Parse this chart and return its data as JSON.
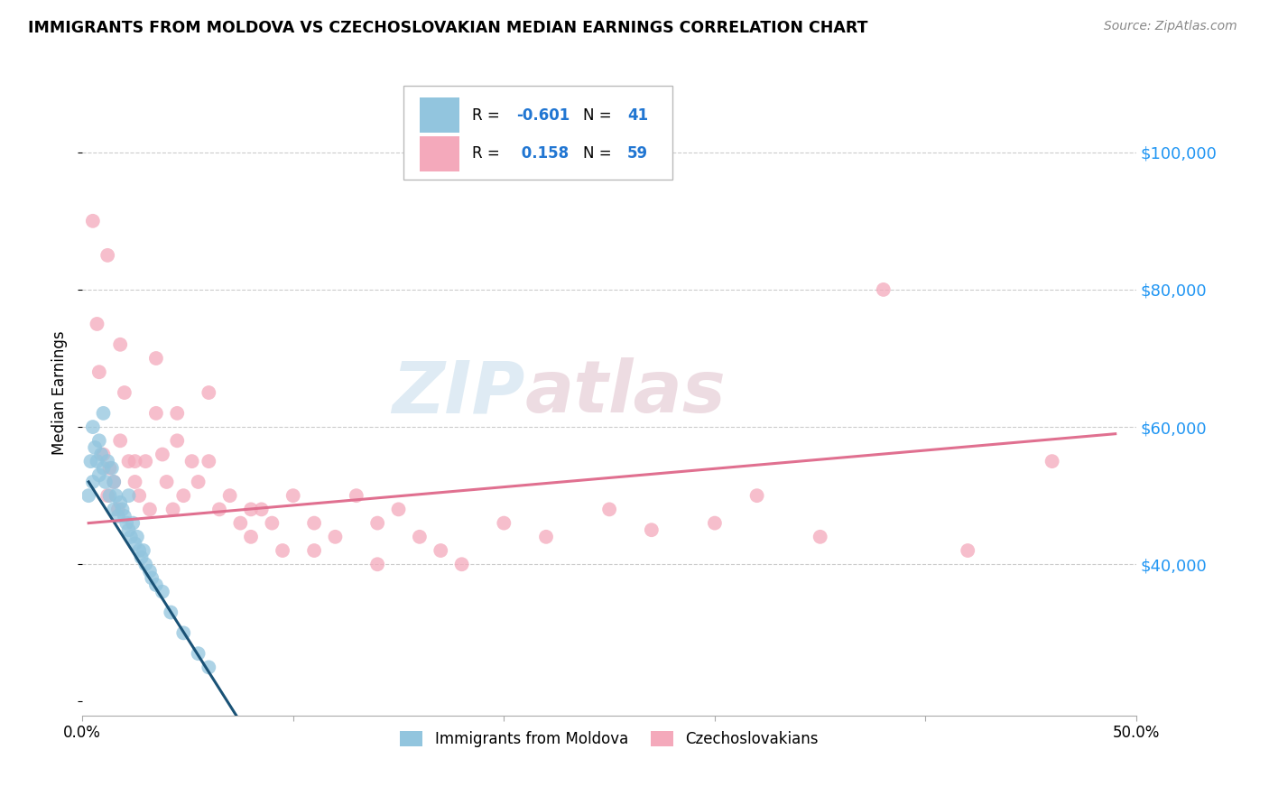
{
  "title": "IMMIGRANTS FROM MOLDOVA VS CZECHOSLOVAKIAN MEDIAN EARNINGS CORRELATION CHART",
  "source": "Source: ZipAtlas.com",
  "ylabel": "Median Earnings",
  "watermark_zip": "ZIP",
  "watermark_atlas": "atlas",
  "legend1_label": "Immigrants from Moldova",
  "legend2_label": "Czechoslovakians",
  "r1": -0.601,
  "n1": 41,
  "r2": 0.158,
  "n2": 59,
  "color_blue": "#92c5de",
  "color_pink": "#f4a9bb",
  "line_blue": "#1a5276",
  "line_pink": "#e07090",
  "yticks": [
    40000,
    60000,
    80000,
    100000
  ],
  "ytick_labels": [
    "$40,000",
    "$60,000",
    "$80,000",
    "$100,000"
  ],
  "xlim": [
    0.0,
    0.5
  ],
  "ylim": [
    18000,
    112000
  ],
  "blue_scatter_x": [
    0.003,
    0.004,
    0.005,
    0.005,
    0.006,
    0.007,
    0.008,
    0.008,
    0.009,
    0.01,
    0.01,
    0.011,
    0.012,
    0.013,
    0.014,
    0.015,
    0.015,
    0.016,
    0.017,
    0.018,
    0.019,
    0.02,
    0.021,
    0.022,
    0.022,
    0.023,
    0.024,
    0.025,
    0.026,
    0.027,
    0.028,
    0.029,
    0.03,
    0.032,
    0.033,
    0.035,
    0.038,
    0.042,
    0.048,
    0.055,
    0.06
  ],
  "blue_scatter_y": [
    50000,
    55000,
    52000,
    60000,
    57000,
    55000,
    53000,
    58000,
    56000,
    54000,
    62000,
    52000,
    55000,
    50000,
    54000,
    52000,
    48000,
    50000,
    47000,
    49000,
    48000,
    47000,
    46000,
    45000,
    50000,
    44000,
    46000,
    43000,
    44000,
    42000,
    41000,
    42000,
    40000,
    39000,
    38000,
    37000,
    36000,
    33000,
    30000,
    27000,
    25000
  ],
  "pink_scatter_x": [
    0.005,
    0.007,
    0.008,
    0.01,
    0.012,
    0.013,
    0.015,
    0.017,
    0.018,
    0.02,
    0.022,
    0.025,
    0.027,
    0.03,
    0.032,
    0.035,
    0.038,
    0.04,
    0.043,
    0.045,
    0.048,
    0.052,
    0.055,
    0.06,
    0.065,
    0.07,
    0.075,
    0.08,
    0.085,
    0.09,
    0.095,
    0.1,
    0.11,
    0.12,
    0.13,
    0.14,
    0.15,
    0.16,
    0.17,
    0.18,
    0.2,
    0.22,
    0.25,
    0.27,
    0.3,
    0.32,
    0.35,
    0.38,
    0.42,
    0.46,
    0.012,
    0.018,
    0.025,
    0.035,
    0.045,
    0.06,
    0.08,
    0.11,
    0.14
  ],
  "pink_scatter_y": [
    90000,
    75000,
    68000,
    56000,
    50000,
    54000,
    52000,
    48000,
    72000,
    65000,
    55000,
    52000,
    50000,
    55000,
    48000,
    70000,
    56000,
    52000,
    48000,
    62000,
    50000,
    55000,
    52000,
    65000,
    48000,
    50000,
    46000,
    44000,
    48000,
    46000,
    42000,
    50000,
    46000,
    44000,
    50000,
    46000,
    48000,
    44000,
    42000,
    40000,
    46000,
    44000,
    48000,
    45000,
    46000,
    50000,
    44000,
    80000,
    42000,
    55000,
    85000,
    58000,
    55000,
    62000,
    58000,
    55000,
    48000,
    42000,
    40000
  ],
  "blue_line_x": [
    0.003,
    0.073
  ],
  "blue_line_y": [
    52000,
    18000
  ],
  "pink_line_x": [
    0.003,
    0.49
  ],
  "pink_line_y": [
    46000,
    59000
  ]
}
